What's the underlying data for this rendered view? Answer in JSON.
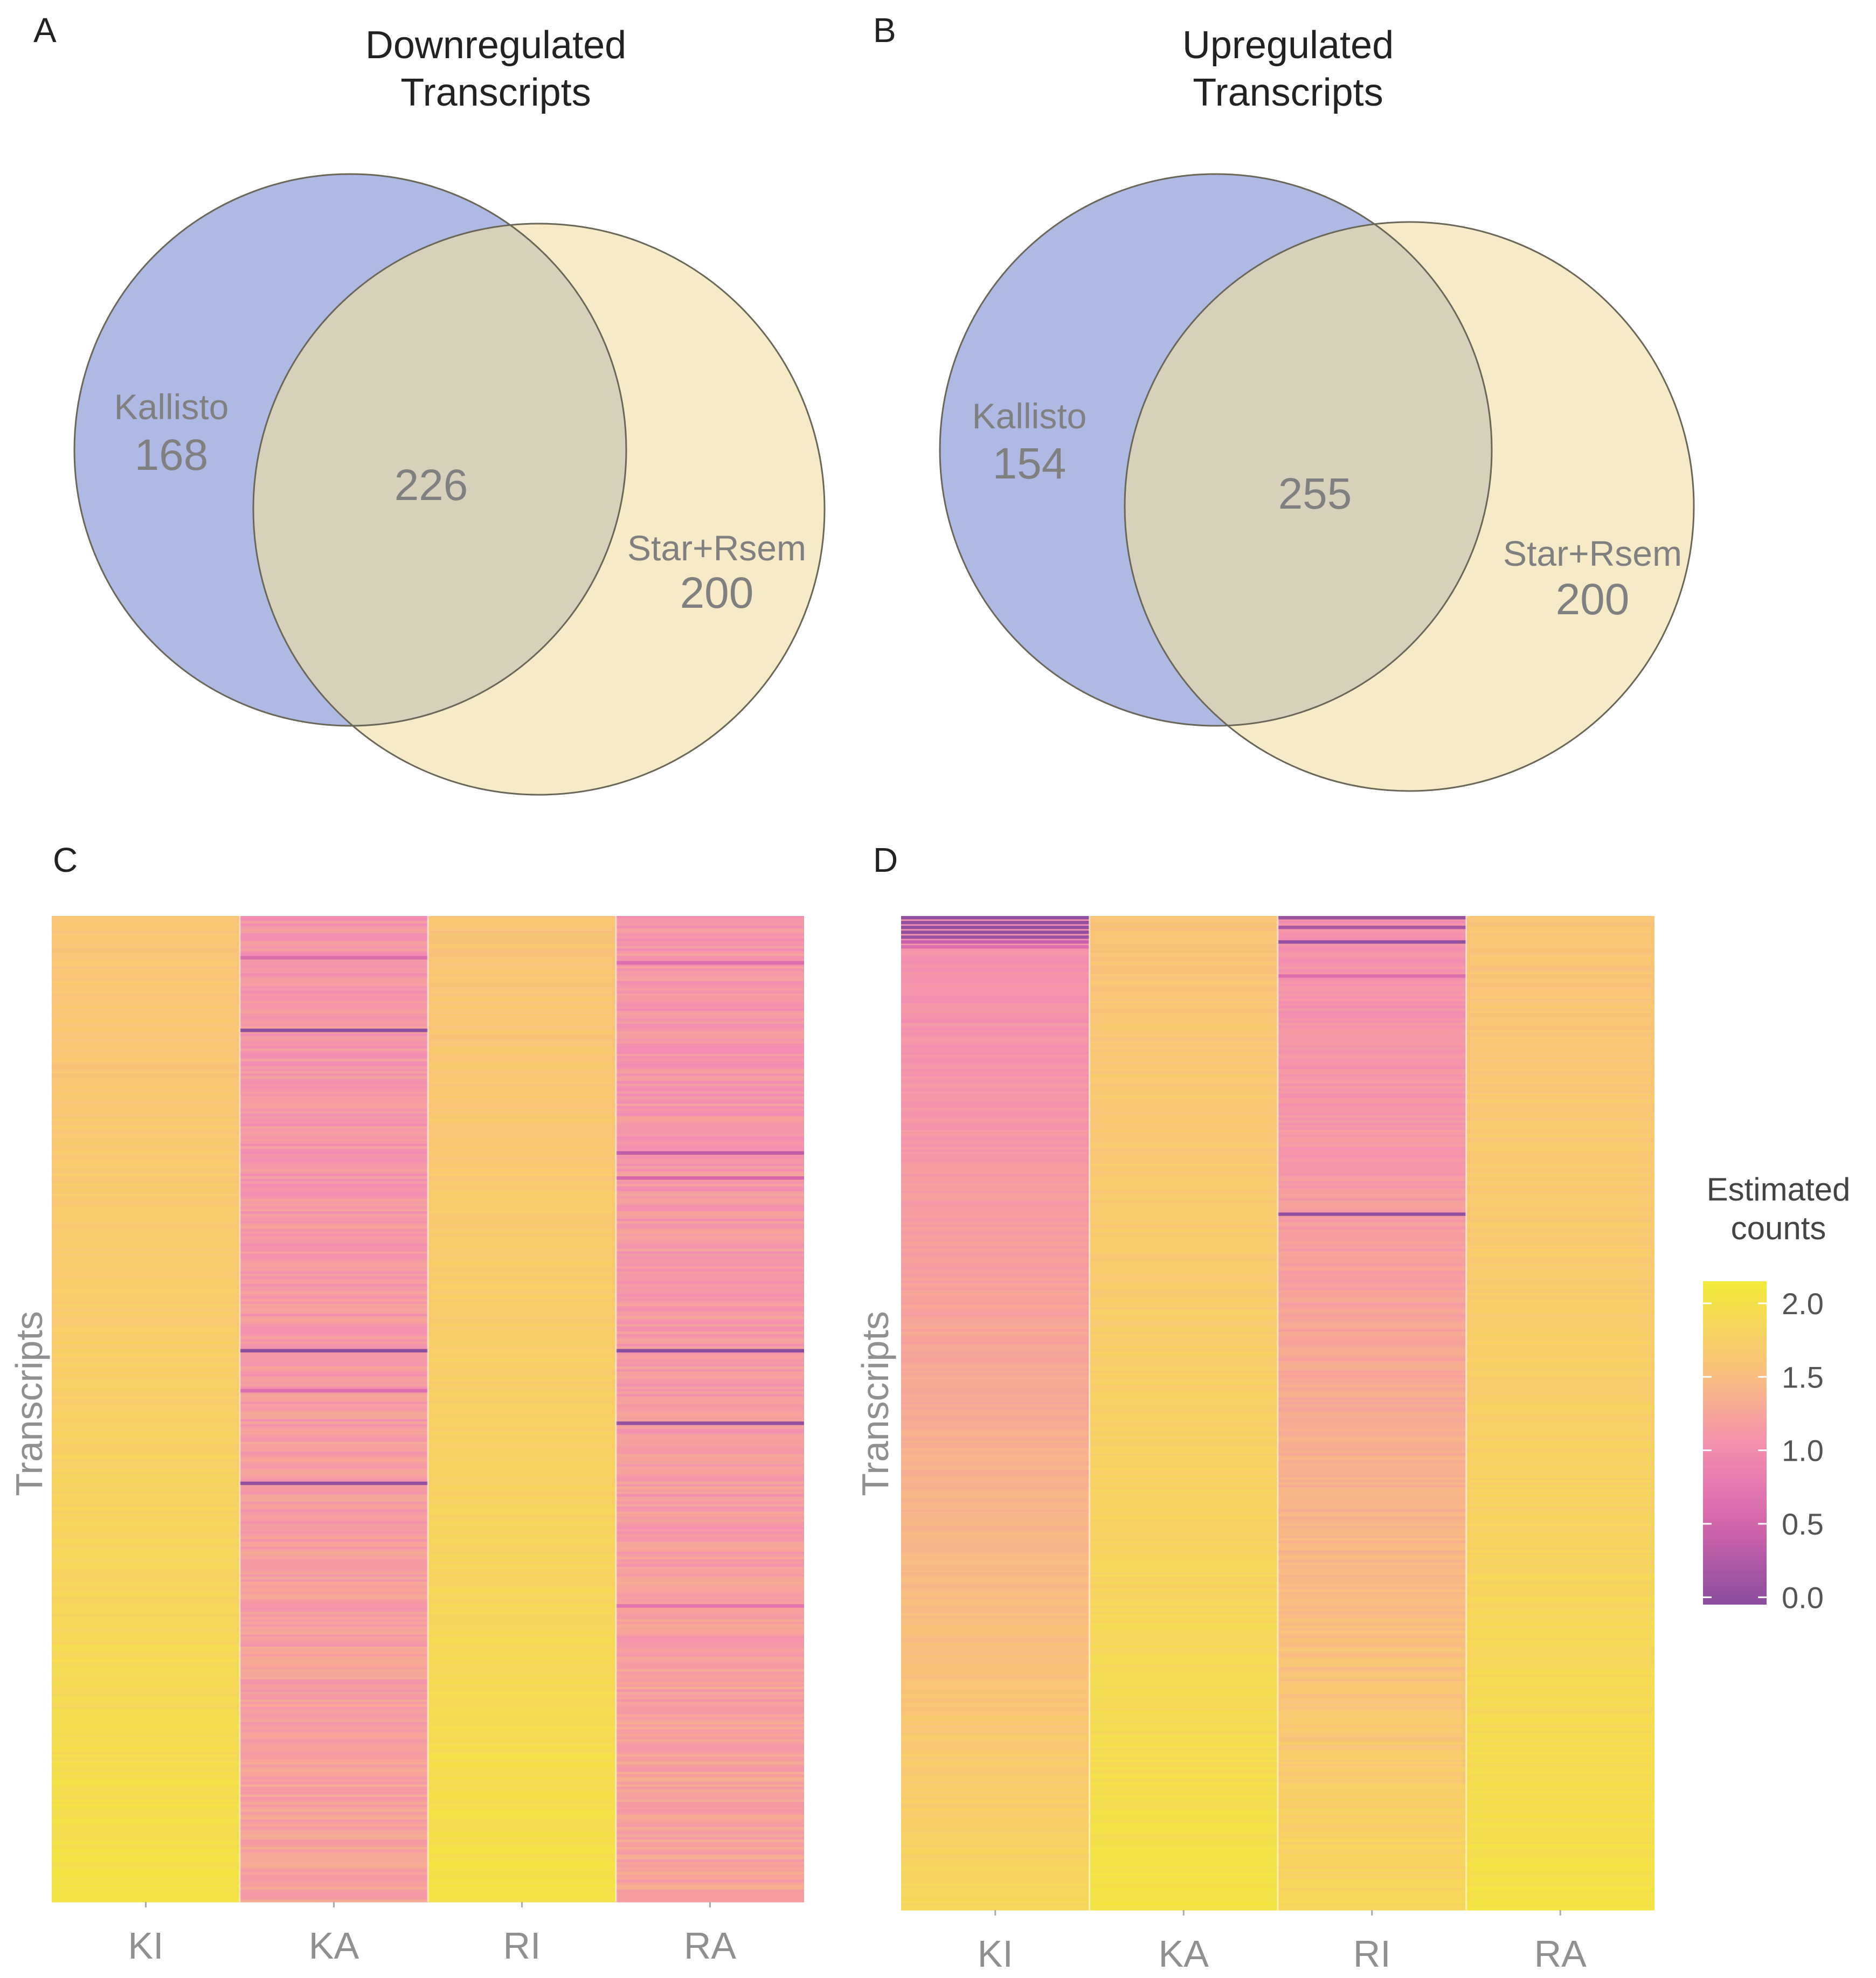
{
  "colors": {
    "kallisto": "#8f9fd8",
    "star_rsem": "#f0dea3",
    "overlap": "#c6bfad",
    "circle_stroke": "#6b6758",
    "venn_text": "#808080",
    "heat_low": "#8b4d9e",
    "heat_mid": "#f08bb2",
    "heat_high": "#f2ea3a",
    "axis_text": "#909090",
    "panel_letter": "#222222"
  },
  "chart_data": [
    {
      "id": "A",
      "type": "venn",
      "panel_label": "A",
      "title_lines": [
        "Downregulated",
        "Transcripts"
      ],
      "sets": [
        {
          "name": "Kallisto",
          "only_count": "168"
        },
        {
          "name": "Star+Rsem",
          "only_count": "200"
        }
      ],
      "intersection": "226"
    },
    {
      "id": "B",
      "type": "venn",
      "panel_label": "B",
      "title_lines": [
        "Upregulated",
        "Transcripts"
      ],
      "sets": [
        {
          "name": "Kallisto",
          "only_count": "154"
        },
        {
          "name": "Star+Rsem",
          "only_count": "200"
        }
      ],
      "intersection": "255"
    },
    {
      "id": "C",
      "type": "heatmap",
      "panel_label": "C",
      "ylabel": "Transcripts",
      "columns": [
        "KI",
        "KA",
        "RI",
        "RA"
      ],
      "n_rows": 394,
      "column_profiles": [
        {
          "column": "KI",
          "from": 1.6,
          "to": 2.05,
          "noise": 0.06
        },
        {
          "column": "KA",
          "from": 1.1,
          "to": 1.25,
          "noise": 0.12
        },
        {
          "column": "RI",
          "from": 1.6,
          "to": 2.05,
          "noise": 0.06
        },
        {
          "column": "RA",
          "from": 1.1,
          "to": 1.25,
          "noise": 0.12
        }
      ],
      "highlights": [
        {
          "column": "KA",
          "row_fraction": 0.115,
          "value": 0.0
        },
        {
          "column": "KA",
          "row_fraction": 0.44,
          "value": 0.0
        },
        {
          "column": "KA",
          "row_fraction": 0.575,
          "value": 0.05
        },
        {
          "column": "KA",
          "row_fraction": 0.04,
          "value": 0.6
        },
        {
          "column": "KA",
          "row_fraction": 0.48,
          "value": 0.6
        },
        {
          "column": "RA",
          "row_fraction": 0.44,
          "value": 0.0
        },
        {
          "column": "RA",
          "row_fraction": 0.515,
          "value": 0.05
        },
        {
          "column": "RA",
          "row_fraction": 0.24,
          "value": 0.35
        },
        {
          "column": "RA",
          "row_fraction": 0.265,
          "value": 0.5
        },
        {
          "column": "RA",
          "row_fraction": 0.045,
          "value": 0.6
        },
        {
          "column": "RA",
          "row_fraction": 0.7,
          "value": 0.7
        }
      ]
    },
    {
      "id": "D",
      "type": "heatmap",
      "panel_label": "D",
      "ylabel": "Transcripts",
      "columns": [
        "KI",
        "KA",
        "RI",
        "RA"
      ],
      "n_rows": 409,
      "column_profiles": [
        {
          "column": "KI",
          "from": 1.05,
          "to": 1.85,
          "noise": 0.06
        },
        {
          "column": "KA",
          "from": 1.6,
          "to": 2.05,
          "noise": 0.06
        },
        {
          "column": "RI",
          "from": 1.05,
          "to": 1.85,
          "noise": 0.08
        },
        {
          "column": "RA",
          "from": 1.6,
          "to": 2.05,
          "noise": 0.06
        }
      ],
      "highlights": [
        {
          "column": "KI",
          "row_fraction": 0.0,
          "value": 0.05
        },
        {
          "column": "KI",
          "row_fraction": 0.005,
          "value": 0.05
        },
        {
          "column": "KI",
          "row_fraction": 0.01,
          "value": 0.05
        },
        {
          "column": "KI",
          "row_fraction": 0.015,
          "value": 0.05
        },
        {
          "column": "KI",
          "row_fraction": 0.02,
          "value": 0.1
        },
        {
          "column": "KI",
          "row_fraction": 0.025,
          "value": 0.4
        },
        {
          "column": "KI",
          "row_fraction": 0.03,
          "value": 0.6
        },
        {
          "column": "RI",
          "row_fraction": 0.0,
          "value": 0.1
        },
        {
          "column": "RI",
          "row_fraction": 0.01,
          "value": 0.2
        },
        {
          "column": "RI",
          "row_fraction": 0.025,
          "value": 0.05
        },
        {
          "column": "RI",
          "row_fraction": 0.06,
          "value": 0.6
        },
        {
          "column": "RI",
          "row_fraction": 0.3,
          "value": 0.05
        }
      ]
    }
  ],
  "legend": {
    "title_lines": [
      "Estimated",
      "counts"
    ],
    "ticks": [
      "2.0",
      "1.5",
      "1.0",
      "0.5",
      "0.0"
    ],
    "tick_values": [
      2.0,
      1.5,
      1.0,
      0.5,
      0.0
    ],
    "range": [
      -0.05,
      2.15
    ]
  }
}
